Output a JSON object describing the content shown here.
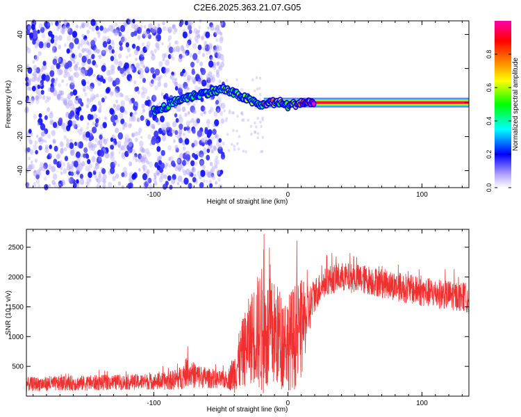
{
  "title": "C2E6.2025.363.21.07.G05",
  "colors": {
    "snr_line": "#f03030",
    "axis": "#000000",
    "colormap": [
      "#ff00ff",
      "#ff0000",
      "#ff8800",
      "#ffff00",
      "#00ff00",
      "#00ffff",
      "#0000ff",
      "#b0a0ff",
      "#ffffff"
    ]
  },
  "chart_data": [
    {
      "type": "heatmap",
      "title": "C2E6.2025.363.21.07.G05",
      "xlabel": "Height of straight line (km)",
      "ylabel": "Frequency (Hz)",
      "xlim": [
        -195,
        135
      ],
      "ylim": [
        -50,
        48
      ],
      "xticks": [
        -100,
        0,
        100
      ],
      "xtick_labels": [
        "-100",
        "0",
        "100"
      ],
      "yticks": [
        -40,
        -20,
        0,
        20,
        40
      ],
      "ytick_labels": [
        "-40",
        "-20",
        "0",
        "20",
        "40"
      ],
      "colorbar": {
        "label": "Normalized spectral amplitude",
        "range": [
          0,
          1
        ],
        "ticks": [
          0.0,
          0.2,
          0.4,
          0.6,
          0.8
        ],
        "tick_labels": [
          "0.0",
          "0.2",
          "0.4",
          "0.6",
          "0.8"
        ]
      },
      "noise_region_x": [
        -195,
        -48
      ],
      "signal_track": [
        {
          "x": -100,
          "y": -5,
          "amp": 0.5
        },
        {
          "x": -95,
          "y": -4,
          "amp": 0.45
        },
        {
          "x": -90,
          "y": -2,
          "amp": 0.5
        },
        {
          "x": -85,
          "y": 0,
          "amp": 0.45
        },
        {
          "x": -80,
          "y": 2,
          "amp": 0.5
        },
        {
          "x": -75,
          "y": 3,
          "amp": 0.45
        },
        {
          "x": -70,
          "y": 4,
          "amp": 0.5
        },
        {
          "x": -65,
          "y": 5,
          "amp": 0.45
        },
        {
          "x": -48,
          "y": 8,
          "amp": 0.5
        },
        {
          "x": -42,
          "y": 6,
          "amp": 0.55
        },
        {
          "x": -36,
          "y": 4,
          "amp": 0.5
        },
        {
          "x": -30,
          "y": 2,
          "amp": 0.55
        },
        {
          "x": -25,
          "y": 0,
          "amp": 0.5
        },
        {
          "x": -20,
          "y": -2,
          "amp": 0.5
        },
        {
          "x": -15,
          "y": 0,
          "amp": 0.75
        },
        {
          "x": -5,
          "y": 0,
          "amp": 0.6
        },
        {
          "x": 0,
          "y": -2,
          "amp": 0.55
        },
        {
          "x": 5,
          "y": -1,
          "amp": 0.6
        },
        {
          "x": 10,
          "y": 0,
          "amp": 0.8
        },
        {
          "x": 20,
          "y": 0,
          "amp": 0.92
        },
        {
          "x": 135,
          "y": 0,
          "amp": 0.95
        }
      ]
    },
    {
      "type": "line",
      "xlabel": "Height of straight line (km)",
      "ylabel": "SNR (10 * v/v)",
      "xlim": [
        -195,
        135
      ],
      "ylim": [
        0,
        2800
      ],
      "xticks": [
        -100,
        0,
        100
      ],
      "xtick_labels": [
        "-100",
        "0",
        "100"
      ],
      "yticks": [
        500,
        1000,
        1500,
        2000,
        2500
      ],
      "ytick_labels": [
        "500",
        "1000",
        "1500",
        "2000",
        "2500"
      ],
      "envelope": {
        "x": [
          -195,
          -150,
          -110,
          -90,
          -80,
          -75,
          -70,
          -55,
          -45,
          -40,
          -35,
          -30,
          -25,
          -20,
          -15,
          -10,
          -5,
          0,
          5,
          10,
          15,
          20,
          25,
          30,
          40,
          60,
          80,
          100,
          120,
          135
        ],
        "mean": [
          200,
          220,
          240,
          250,
          300,
          420,
          350,
          280,
          270,
          400,
          650,
          900,
          1050,
          1100,
          1000,
          1050,
          950,
          900,
          1000,
          1100,
          1400,
          1700,
          1850,
          1950,
          2000,
          1950,
          1850,
          1750,
          1700,
          1650
        ],
        "spread": [
          120,
          130,
          130,
          150,
          200,
          250,
          220,
          150,
          150,
          350,
          550,
          700,
          850,
          1100,
          1000,
          900,
          850,
          800,
          900,
          850,
          450,
          300,
          250,
          250,
          250,
          250,
          250,
          250,
          250,
          250
        ]
      }
    }
  ]
}
